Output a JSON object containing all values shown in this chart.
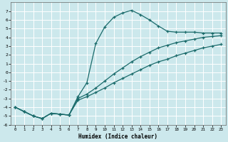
{
  "xlabel": "Humidex (Indice chaleur)",
  "bg_color": "#cce8ec",
  "grid_color": "#b0d4d8",
  "line_color": "#1a6b6b",
  "xlim": [
    -0.5,
    23.5
  ],
  "ylim": [
    -6,
    8
  ],
  "xticks": [
    0,
    1,
    2,
    3,
    4,
    5,
    6,
    7,
    8,
    9,
    10,
    11,
    12,
    13,
    14,
    15,
    16,
    17,
    18,
    19,
    20,
    21,
    22,
    23
  ],
  "yticks": [
    -6,
    -5,
    -4,
    -3,
    -2,
    -1,
    0,
    1,
    2,
    3,
    4,
    5,
    6,
    7
  ],
  "line1_x": [
    0,
    1,
    2,
    3,
    4,
    5,
    6,
    7,
    8,
    9,
    10,
    11,
    12,
    13,
    14,
    15,
    16,
    17,
    18,
    19,
    20,
    21,
    22,
    23
  ],
  "line1_y": [
    -4.0,
    -4.5,
    -5.0,
    -5.3,
    -4.7,
    -4.8,
    -4.9,
    -2.8,
    -1.2,
    3.3,
    5.2,
    6.3,
    6.8,
    7.1,
    6.6,
    6.0,
    5.3,
    4.7,
    4.6,
    4.6,
    4.6,
    4.5,
    4.5,
    4.5
  ],
  "line2_x": [
    0,
    1,
    2,
    3,
    4,
    5,
    6,
    7,
    8,
    9,
    10,
    11,
    12,
    13,
    14,
    15,
    16,
    17,
    18,
    19,
    20,
    21,
    22,
    23
  ],
  "line2_y": [
    -4.0,
    -4.5,
    -5.0,
    -5.3,
    -4.7,
    -4.8,
    -4.9,
    -3.0,
    -2.5,
    -1.8,
    -1.0,
    -0.2,
    0.5,
    1.2,
    1.8,
    2.3,
    2.8,
    3.1,
    3.4,
    3.6,
    3.8,
    4.0,
    4.1,
    4.2
  ],
  "line3_x": [
    0,
    1,
    2,
    3,
    4,
    5,
    6,
    7,
    8,
    9,
    10,
    11,
    12,
    13,
    14,
    15,
    16,
    17,
    18,
    19,
    20,
    21,
    22,
    23
  ],
  "line3_y": [
    -4.0,
    -4.5,
    -5.0,
    -5.3,
    -4.7,
    -4.8,
    -4.9,
    -3.2,
    -2.8,
    -2.3,
    -1.8,
    -1.2,
    -0.7,
    -0.2,
    0.3,
    0.8,
    1.2,
    1.5,
    1.9,
    2.2,
    2.5,
    2.8,
    3.0,
    3.2
  ]
}
